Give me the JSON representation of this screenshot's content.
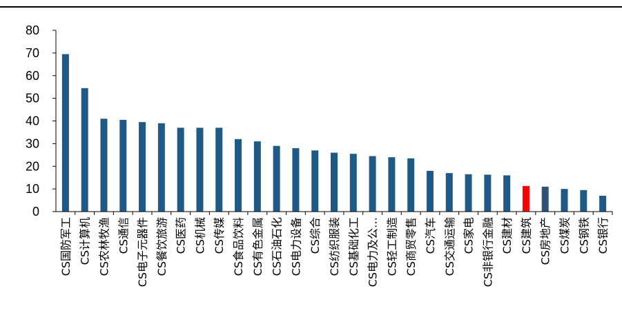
{
  "chart_data": {
    "type": "bar",
    "ylim": [
      0,
      80
    ],
    "yticks": [
      0,
      10,
      20,
      30,
      40,
      50,
      60,
      70,
      80
    ],
    "categories": [
      "CS国防军工",
      "CS计算机",
      "CS农林牧渔",
      "CS通信",
      "CS电子元器件",
      "CS餐饮旅游",
      "CS医药",
      "CS机械",
      "CS传媒",
      "CS食品饮料",
      "CS有色金属",
      "CS石油石化",
      "CS电力设备",
      "CS综合",
      "CS纺织服装",
      "CS基础化工",
      "CS电力及公…",
      "CS轻工制造",
      "CS商贸零售",
      "CS汽车",
      "CS交通运输",
      "CS家电",
      "CS非银行金融",
      "CS建材",
      "CS建筑",
      "CS房地产",
      "CS煤炭",
      "CS钢铁",
      "CS银行"
    ],
    "values": [
      69.5,
      54.5,
      41,
      40.5,
      39.5,
      39,
      37,
      37,
      37,
      32,
      31,
      29,
      28,
      27,
      26,
      25.5,
      24.5,
      24,
      23.5,
      18,
      17,
      16.5,
      16.3,
      16,
      11.3,
      11,
      10,
      9.5,
      7
    ],
    "colors": {
      "default": "#1F5A86",
      "highlight": "#FF0000",
      "highlight_index": 24,
      "alt": "#2F5275",
      "alt_index": 25
    },
    "grid": false,
    "legend": "none",
    "title": "",
    "xlabel": "",
    "ylabel": ""
  }
}
